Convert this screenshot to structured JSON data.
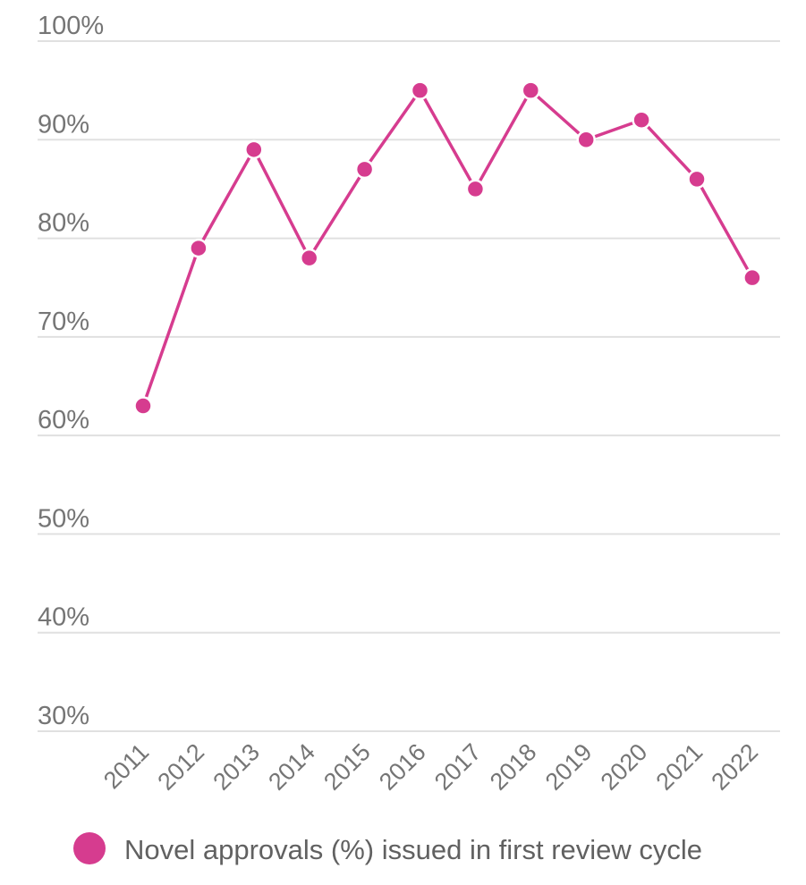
{
  "chart_data": {
    "type": "line",
    "x": [
      "2011",
      "2012",
      "2013",
      "2014",
      "2015",
      "2016",
      "2017",
      "2018",
      "2019",
      "2020",
      "2021",
      "2022"
    ],
    "series": [
      {
        "name": "Novel approvals (%) issued in first review cycle",
        "values": [
          63,
          79,
          89,
          78,
          87,
          95,
          85,
          95,
          90,
          92,
          86,
          76
        ],
        "color": "#d63c8f"
      }
    ],
    "y_tick_labels": [
      "100%",
      "90%",
      "80%",
      "70%",
      "60%",
      "50%",
      "40%",
      "30%"
    ],
    "y_ticks": [
      100,
      90,
      80,
      70,
      60,
      50,
      40,
      30
    ],
    "ylim": [
      30,
      100
    ],
    "grid": true,
    "legend_position": "bottom",
    "xlabel": "",
    "ylabel": "",
    "title": ""
  }
}
